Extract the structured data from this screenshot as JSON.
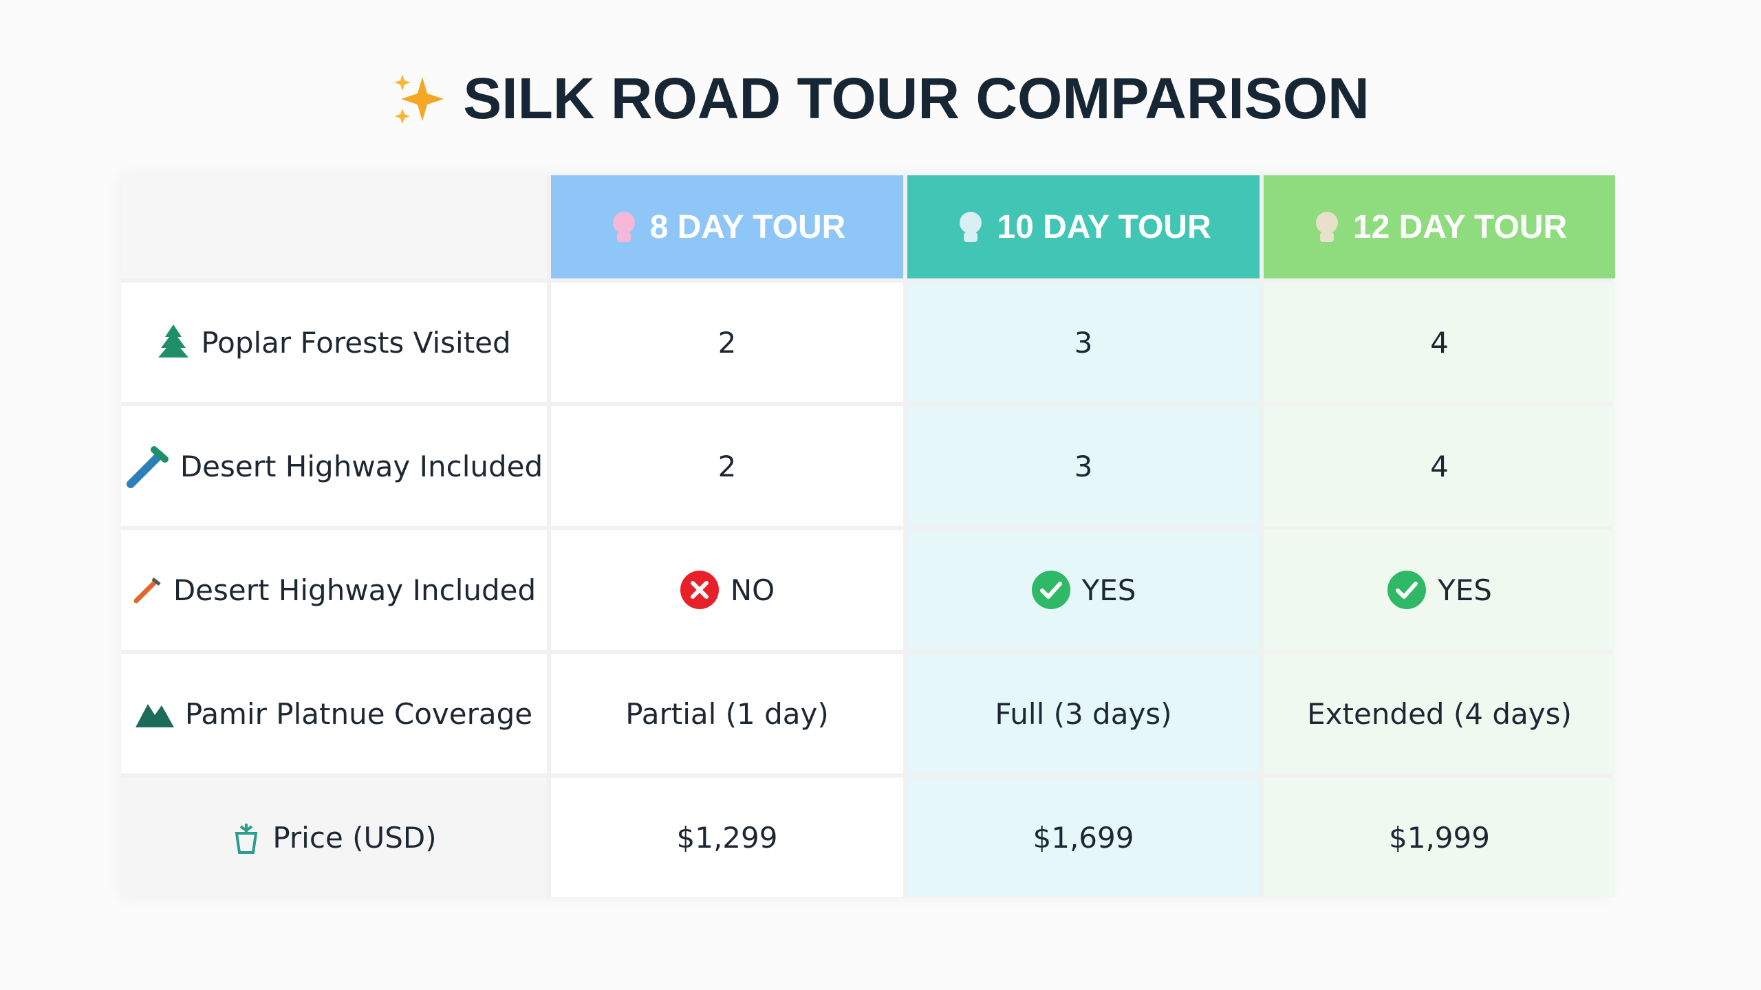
{
  "header": {
    "title": "SILK ROAD TOUR COMPARISON"
  },
  "table": {
    "columns": [
      "8 DAY TOUR",
      "10 DAY TOUR",
      "12 DAY TOUR"
    ],
    "rows": [
      {
        "label": "Poplar Forests Visited",
        "cells": [
          2,
          3,
          4
        ]
      },
      {
        "label": "Desert Highway Included",
        "cells": [
          2,
          3,
          4
        ]
      },
      {
        "label": "Desert Highway Included",
        "cells": [
          "NO",
          "YES",
          "YES"
        ]
      },
      {
        "label": "Pamir Platnue Coverage",
        "cells": [
          "Partial (1 day)",
          "Full (3 days)",
          "Extended (4 days)"
        ]
      },
      {
        "label": "Price (USD)",
        "cells": [
          "$1,299",
          "$1,699",
          "$1,999"
        ]
      }
    ]
  }
}
